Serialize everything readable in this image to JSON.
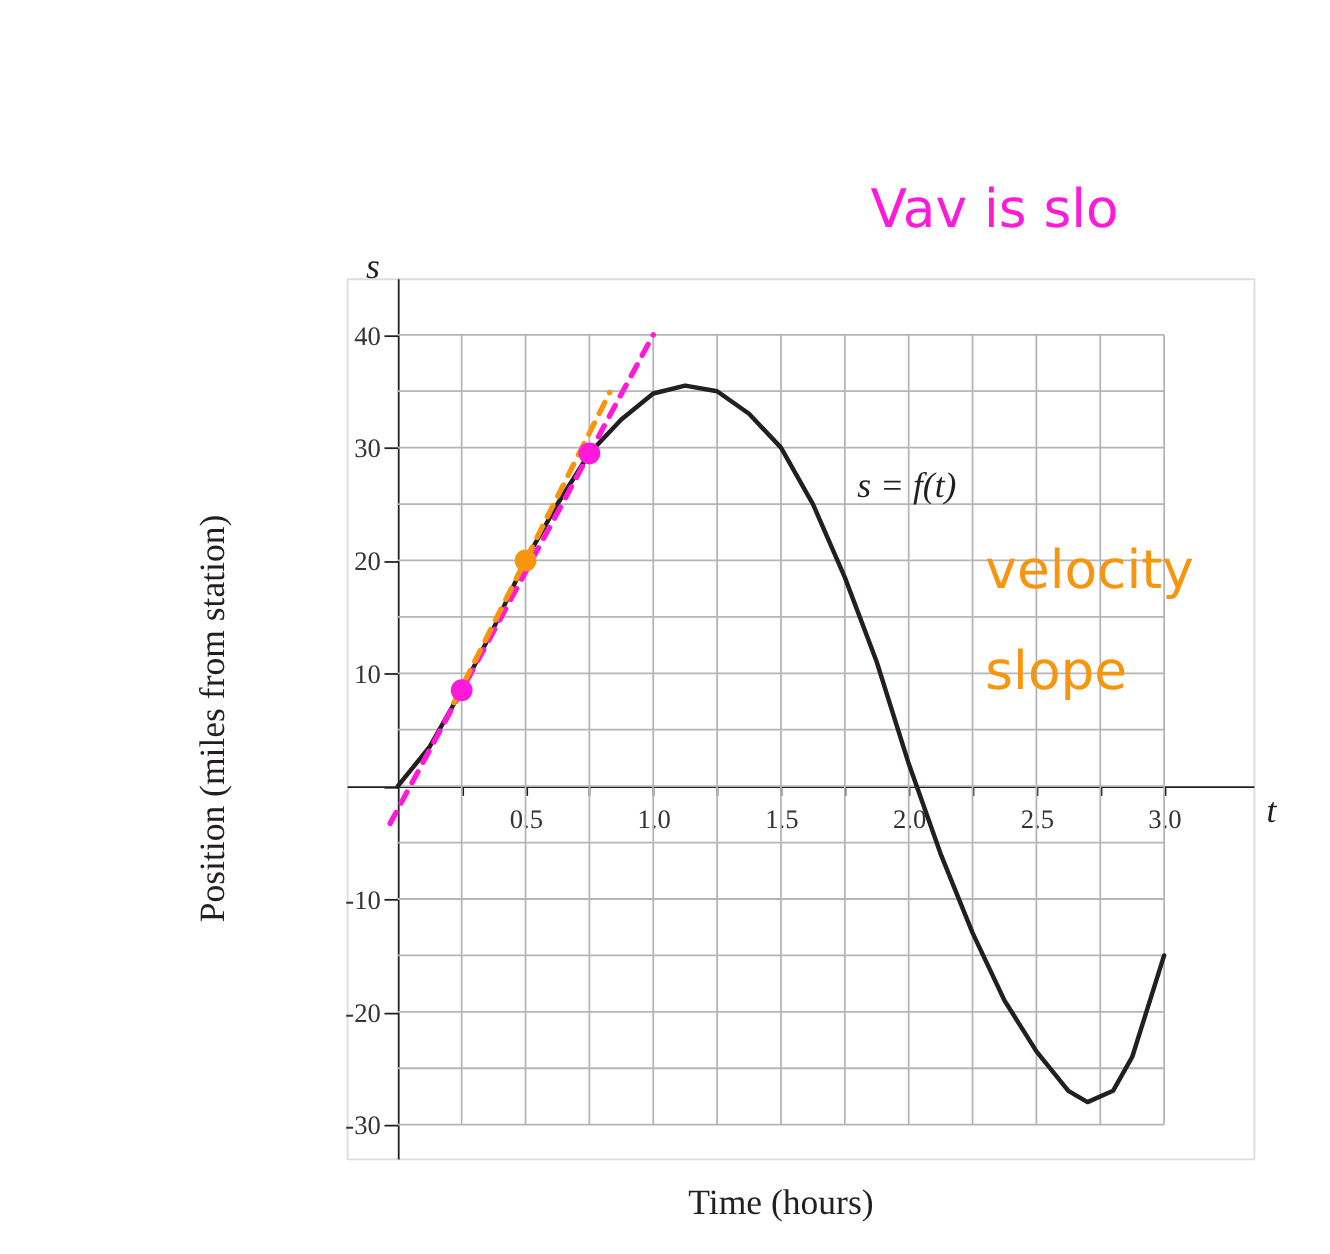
{
  "chart_data": {
    "type": "line",
    "xlabel": "Time (hours)",
    "ylabel": "Position (miles from station)",
    "annotations": [
      "s",
      "t",
      "Vav is slo",
      "velocity",
      "slope"
    ],
    "xlim": [
      -0.2,
      3.35
    ],
    "ylim": [
      -33,
      45
    ],
    "xticks": [
      {
        "value": 0.25,
        "label": null
      },
      0.5,
      {
        "value": 0.75,
        "label": null
      },
      {
        "value": 1,
        "label": "1.0"
      },
      {
        "value": 1.25,
        "label": null
      },
      1.5,
      {
        "value": 1.75,
        "label": null
      },
      {
        "value": 2,
        "label": "2.0"
      },
      {
        "value": 2.25,
        "label": null
      },
      2.5,
      {
        "value": 2.75,
        "label": null
      },
      {
        "value": 3,
        "label": "3.0"
      }
    ],
    "yticks": [
      -30,
      {
        "value": -25,
        "label": null
      },
      -20,
      {
        "value": -15,
        "label": null
      },
      -10,
      {
        "value": -5,
        "label": null
      },
      {
        "value": 0,
        "label": null
      },
      {
        "value": 5,
        "label": null
      },
      10,
      {
        "value": 15,
        "label": null
      },
      20,
      {
        "value": 25,
        "label": null
      },
      30,
      {
        "value": 35,
        "label": null
      },
      40
    ],
    "grid": true,
    "series": [
      {
        "name": "s = f(t)",
        "color": "#231f20",
        "line_style": "solid",
        "x": [
          0,
          0.125,
          0.25,
          0.375,
          0.5,
          0.625,
          0.75,
          0.875,
          1.0,
          1.125,
          1.25,
          1.375,
          1.5,
          1.625,
          1.75,
          1.875,
          2.0,
          2.125,
          2.25,
          2.375,
          2.5,
          2.625,
          2.7,
          2.8,
          2.875,
          3.0
        ],
        "values": [
          0,
          3.5,
          8.5,
          14,
          20,
          25,
          29.5,
          32.5,
          34.8,
          35.5,
          35,
          33,
          30,
          25,
          18.5,
          11,
          2,
          -6,
          -13,
          -19,
          -23.5,
          -27,
          -28,
          -27,
          -24,
          -15
        ]
      },
      {
        "color": "#ff1ad9",
        "line_style": "dashed",
        "x": [
          -0.03,
          1.0
        ],
        "values": [
          -3.3,
          40
        ]
      },
      {
        "color": "#f7950f",
        "line_style": "dashed",
        "x": [
          0.22,
          0.83
        ],
        "values": [
          7.4,
          34.9
        ]
      },
      {
        "type": "scatter",
        "color": "#ff1ad9",
        "marker": "circle",
        "x": [
          0.25,
          0.75
        ],
        "values": [
          8.5,
          29.5
        ]
      },
      {
        "type": "scatter",
        "color": "#f7950f",
        "marker": "circle",
        "x": [
          0.5
        ],
        "values": [
          20
        ]
      }
    ]
  }
}
